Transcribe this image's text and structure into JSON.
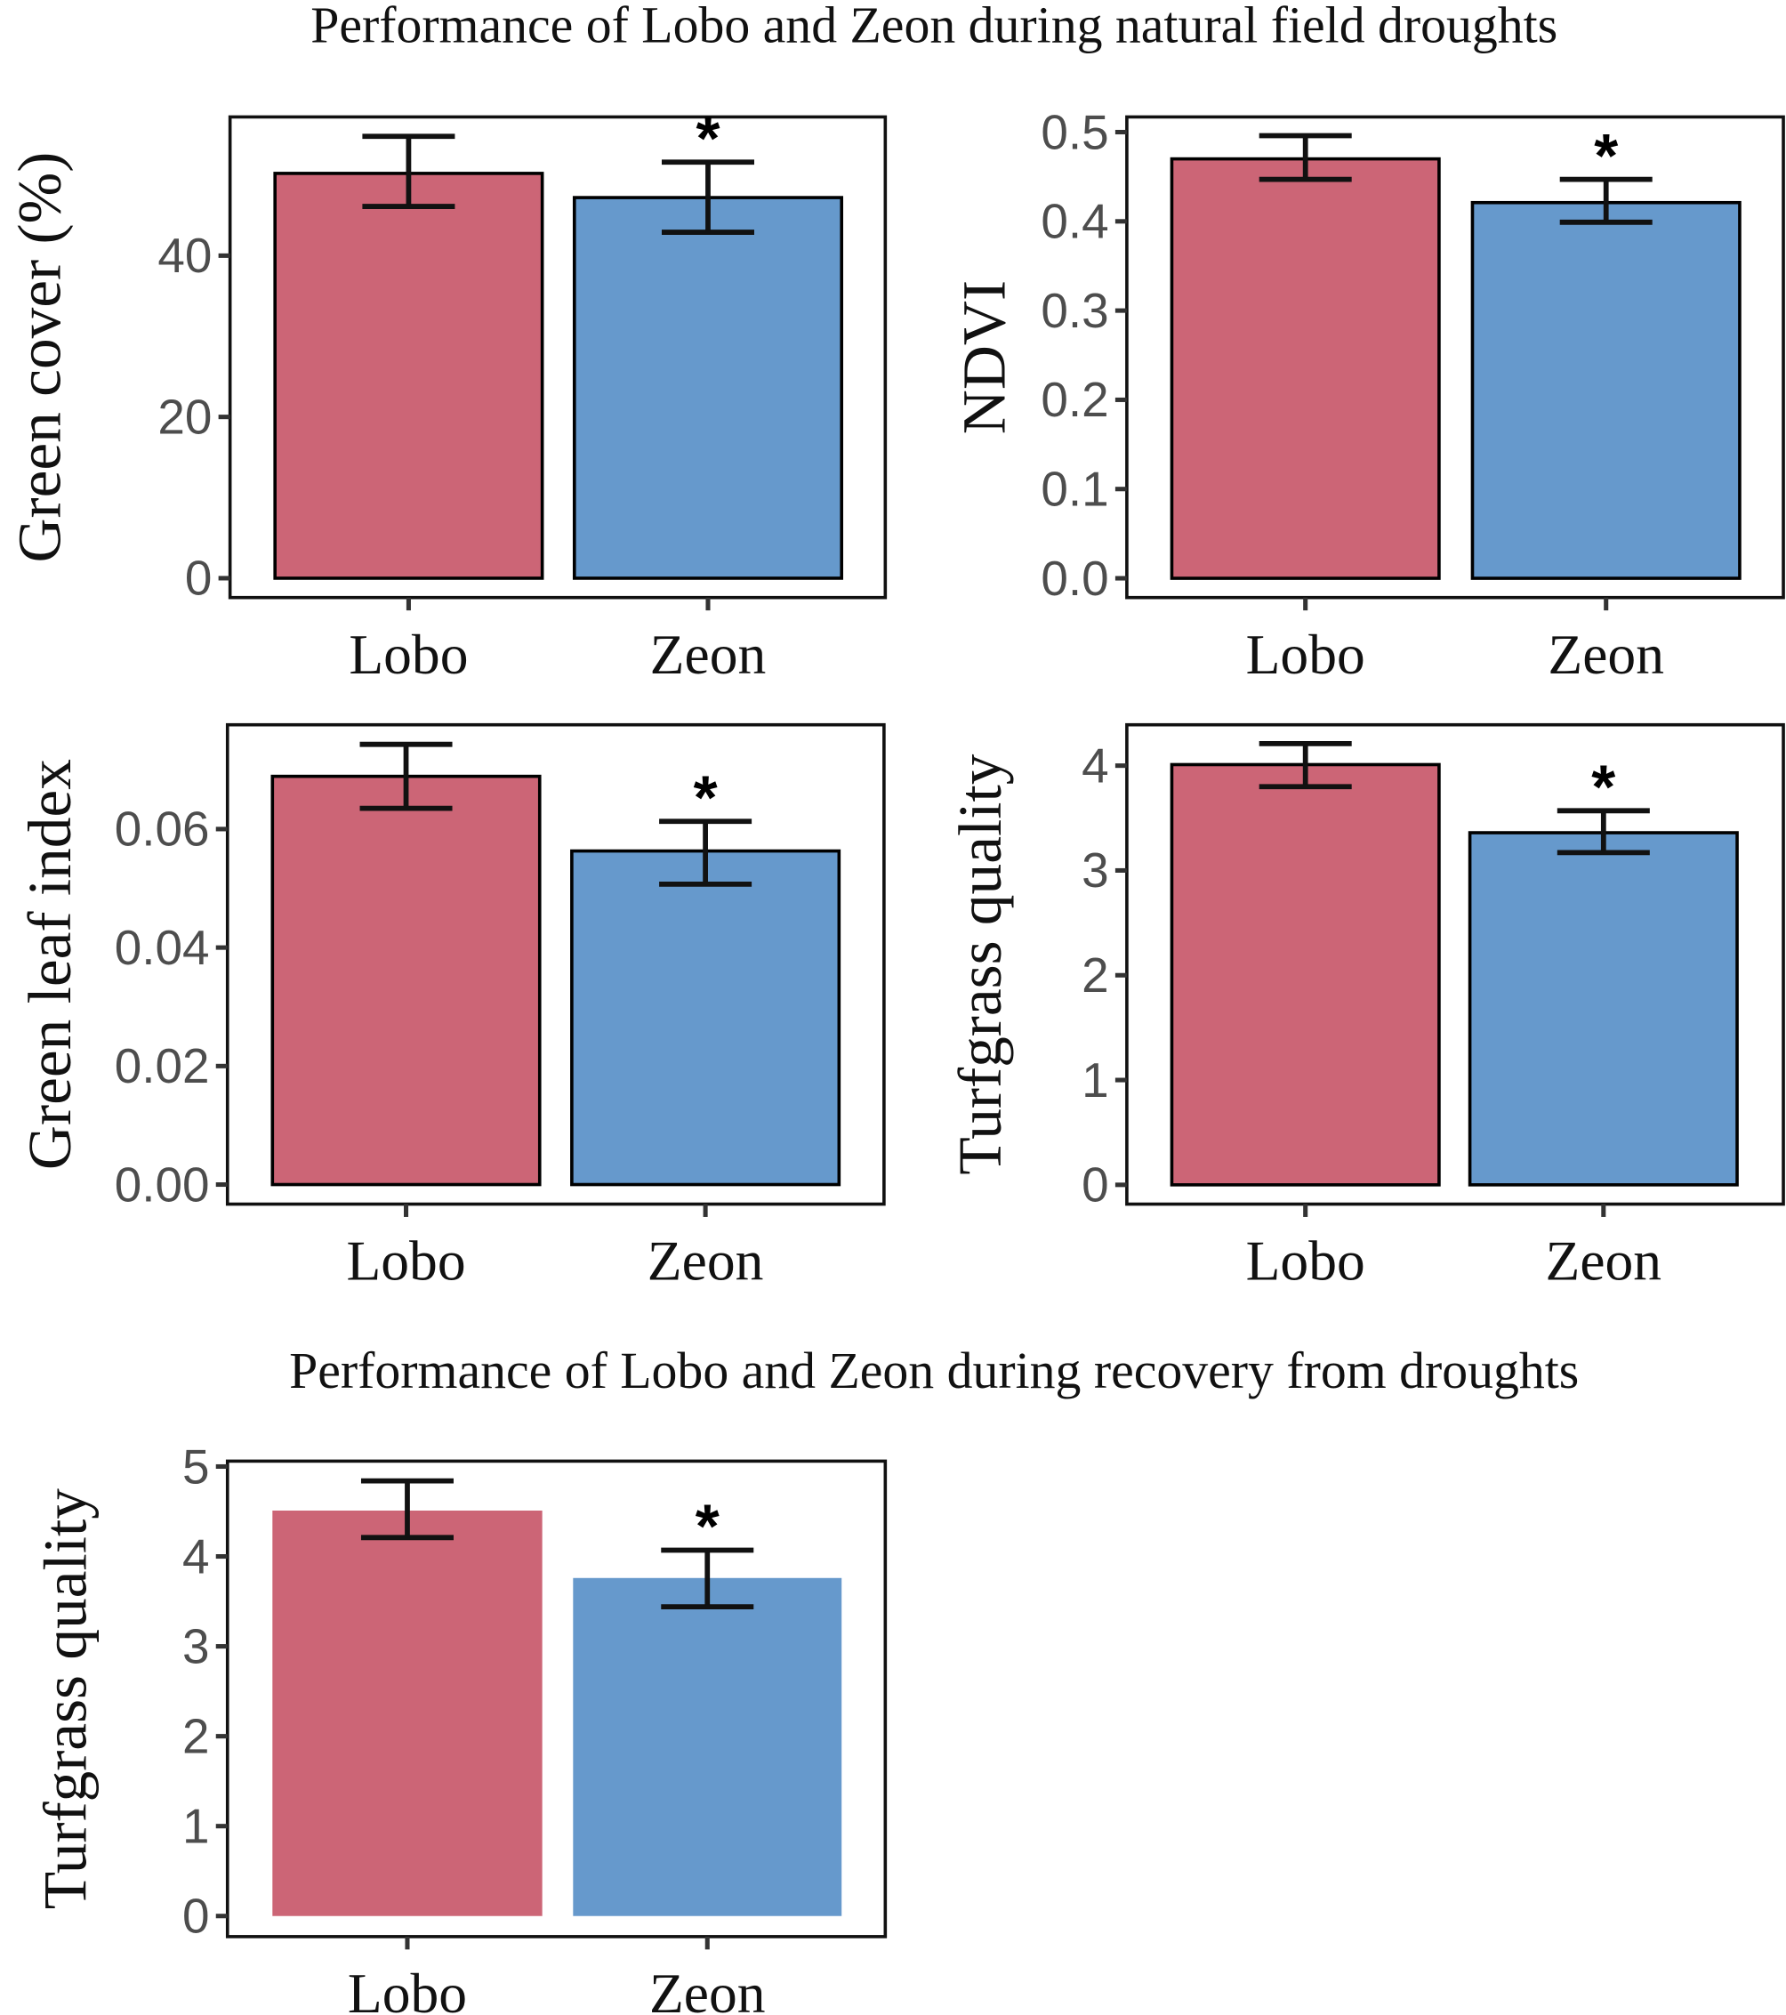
{
  "titles": {
    "drought": "Performance of Lobo and Zeon during natural field droughts",
    "recovery": "Performance of Lobo and Zeon during recovery from droughts"
  },
  "colors": {
    "Lobo": "#cc6576",
    "Zeon": "#6699cc",
    "outline": "#000000",
    "errorbar": "#111111"
  },
  "chart_data": [
    {
      "type": "bar",
      "title": "",
      "xlabel": "",
      "ylabel": "Green cover (%)",
      "categories": [
        "Lobo",
        "Zeon"
      ],
      "values": [
        50.2,
        47.2
      ],
      "error_low": [
        46.1,
        42.9
      ],
      "error_high": [
        54.8,
        51.6
      ],
      "significance": [
        "",
        "*"
      ],
      "ylim": [
        -2.4,
        57.2
      ],
      "yticks": [
        0,
        20,
        40
      ],
      "ytick_labels": [
        "0",
        "20",
        "40"
      ],
      "bar_outline": true,
      "grid": false
    },
    {
      "type": "bar",
      "title": "",
      "xlabel": "",
      "ylabel": "NDVI",
      "categories": [
        "Lobo",
        "Zeon"
      ],
      "values": [
        0.47,
        0.421
      ],
      "error_low": [
        0.447,
        0.399
      ],
      "error_high": [
        0.496,
        0.447
      ],
      "significance": [
        "",
        "*"
      ],
      "ylim": [
        -0.0216,
        0.517
      ],
      "yticks": [
        0,
        0.1,
        0.2,
        0.3,
        0.4,
        0.5
      ],
      "ytick_labels": [
        "0.0",
        "0.1",
        "0.2",
        "0.3",
        "0.4",
        "0.5"
      ],
      "bar_outline": true,
      "grid": false
    },
    {
      "type": "bar",
      "title": "",
      "xlabel": "",
      "ylabel": "Green leaf index",
      "categories": [
        "Lobo",
        "Zeon"
      ],
      "values": [
        0.0689,
        0.0563
      ],
      "error_low": [
        0.0635,
        0.0507
      ],
      "error_high": [
        0.0743,
        0.0613
      ],
      "significance": [
        "",
        "*"
      ],
      "ylim": [
        -0.0033,
        0.0776
      ],
      "yticks": [
        0,
        0.02,
        0.04,
        0.06
      ],
      "ytick_labels": [
        "0.00",
        "0.02",
        "0.04",
        "0.06"
      ],
      "bar_outline": true,
      "grid": false
    },
    {
      "type": "bar",
      "title": "",
      "xlabel": "",
      "ylabel": "Turfgrass quality",
      "categories": [
        "Lobo",
        "Zeon"
      ],
      "values": [
        4.01,
        3.36
      ],
      "error_low": [
        3.8,
        3.17
      ],
      "error_high": [
        4.21,
        3.57
      ],
      "significance": [
        "",
        "*"
      ],
      "ylim": [
        -0.184,
        4.39
      ],
      "yticks": [
        0,
        1,
        2,
        3,
        4
      ],
      "ytick_labels": [
        "0",
        "1",
        "2",
        "3",
        "4"
      ],
      "bar_outline": true,
      "grid": false
    },
    {
      "type": "bar",
      "title": "",
      "xlabel": "",
      "ylabel": "Turfgrass quality",
      "categories": [
        "Lobo",
        "Zeon"
      ],
      "values": [
        4.51,
        3.76
      ],
      "error_low": [
        4.21,
        3.44
      ],
      "error_high": [
        4.84,
        4.07
      ],
      "significance": [
        "",
        "*"
      ],
      "ylim": [
        -0.229,
        5.06
      ],
      "yticks": [
        0,
        1,
        2,
        3,
        4,
        5
      ],
      "ytick_labels": [
        "0",
        "1",
        "2",
        "3",
        "4",
        "5"
      ],
      "bar_outline": false,
      "grid": false
    }
  ]
}
